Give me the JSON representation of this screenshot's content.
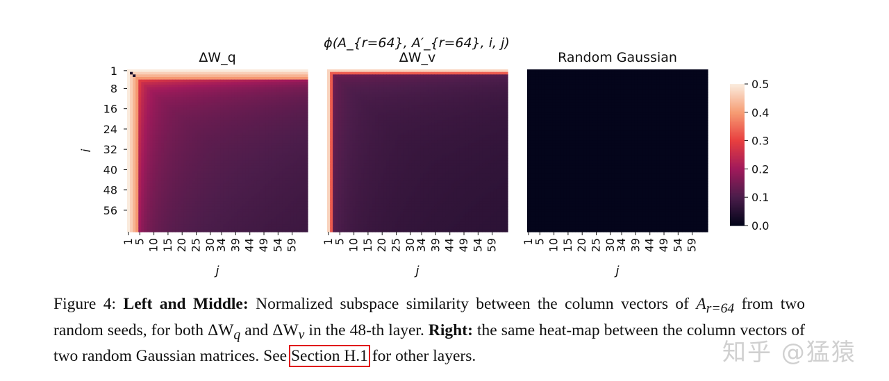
{
  "chart_data": {
    "type": "heatmap",
    "suptitle": "ϕ(A_{r=64}, A′_{r=64}, i, j)",
    "panels": [
      {
        "title": "ΔW_q",
        "rows": 64,
        "cols": 64,
        "profile": "q"
      },
      {
        "title": "ΔW_v",
        "rows": 64,
        "cols": 64,
        "profile": "v"
      },
      {
        "title": "Random Gaussian",
        "rows": 64,
        "cols": 64,
        "profile": "zero"
      }
    ],
    "ylabel": "i",
    "xlabel": "j",
    "y_ticks": [
      "1",
      "8",
      "16",
      "24",
      "32",
      "40",
      "48",
      "56"
    ],
    "y_tick_values": [
      1,
      8,
      16,
      24,
      32,
      40,
      48,
      56
    ],
    "x_ticks": [
      "1",
      "5",
      "10",
      "15",
      "20",
      "25",
      "30",
      "34",
      "39",
      "44",
      "49",
      "54",
      "59"
    ],
    "x_tick_values": [
      1,
      5,
      10,
      15,
      20,
      25,
      30,
      34,
      39,
      44,
      49,
      54,
      59
    ],
    "colorbar": {
      "min": 0.0,
      "max": 0.5,
      "ticks": [
        "0.0",
        "0.1",
        "0.2",
        "0.3",
        "0.4",
        "0.5"
      ],
      "tick_values": [
        0.0,
        0.1,
        0.2,
        0.3,
        0.4,
        0.5
      ],
      "colormap": "rocket",
      "stops": [
        "#03051a",
        "#4c1d4b",
        "#a11a5b",
        "#e83f3f",
        "#f69c73",
        "#faebdd"
      ]
    }
  },
  "caption": {
    "fig_label": "Figure 4:",
    "lead_bold": "Left and Middle:",
    "text1": " Normalized subspace similarity between the column vectors of ",
    "math_A": "A",
    "math_sub": "r=64",
    "text2": " from two random seeds, for both ",
    "dwq": "ΔW",
    "dwq_sub": "q",
    "text3": " and ",
    "dwv": "ΔW",
    "dwv_sub": "v",
    "text4": " in the 48-th layer. ",
    "right_bold": "Right:",
    "text5": " the same heat-map between the column vectors of two random Gaussian matrices. See ",
    "link": "Section H.1",
    "text6": " for other layers."
  },
  "watermark": "知乎 @猛猿"
}
